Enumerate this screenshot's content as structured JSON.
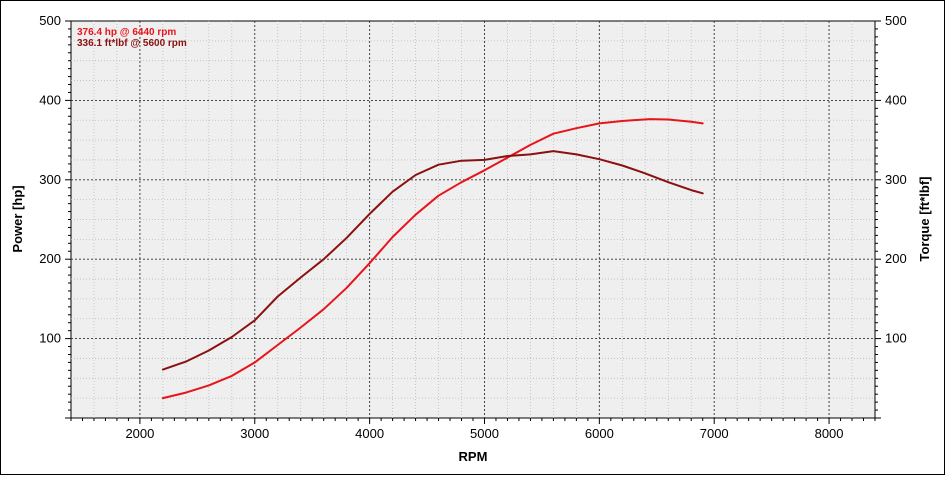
{
  "chart_data": {
    "type": "line",
    "title": "",
    "xlabel": "RPM",
    "ylabel": "Power [hp]",
    "y2label": "Torque [ft*lbf]",
    "xlim": [
      1400,
      8400
    ],
    "ylim": [
      0,
      500
    ],
    "y2lim": [
      0,
      500
    ],
    "x_ticks": [
      2000,
      3000,
      4000,
      5000,
      6000,
      7000,
      8000
    ],
    "y_ticks": [
      100,
      200,
      300,
      400,
      500
    ],
    "y2_ticks": [
      100,
      200,
      300,
      400,
      500
    ],
    "grid": true,
    "annotations": [
      {
        "text": "376.4 hp @ 6440 rpm",
        "color": "#e8141b"
      },
      {
        "text": "336.1 ft*lbf @ 5600 rpm",
        "color": "#8b1010"
      }
    ],
    "series": [
      {
        "name": "",
        "axis": "left",
        "color": "#e8141b",
        "x": [
          2200,
          2400,
          2600,
          2800,
          3000,
          3200,
          3400,
          3600,
          3800,
          4000,
          4200,
          4400,
          4600,
          4800,
          5000,
          5200,
          5400,
          5600,
          5800,
          6000,
          6200,
          6440,
          6600,
          6800,
          6900
        ],
        "y": [
          25,
          32,
          41,
          53,
          70,
          92,
          114,
          137,
          164,
          195,
          228,
          256,
          280,
          297,
          312,
          328,
          344,
          358,
          365,
          371,
          374,
          376.4,
          376,
          373,
          371
        ]
      },
      {
        "name": "",
        "axis": "right",
        "color": "#8b1010",
        "x": [
          2200,
          2400,
          2600,
          2800,
          3000,
          3200,
          3400,
          3600,
          3800,
          4000,
          4200,
          4400,
          4600,
          4800,
          5000,
          5200,
          5400,
          5600,
          5800,
          6000,
          6200,
          6400,
          6600,
          6800,
          6900
        ],
        "y": [
          61,
          71,
          85,
          102,
          123,
          153,
          177,
          200,
          227,
          257,
          285,
          306,
          319,
          324,
          325,
          330,
          332,
          336.1,
          332,
          326,
          318,
          308,
          297,
          287,
          283
        ]
      }
    ]
  }
}
